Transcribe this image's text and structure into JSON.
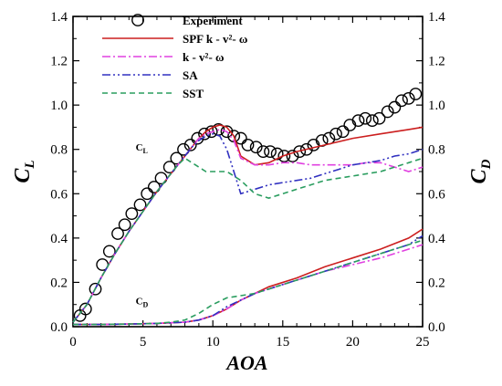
{
  "chart_data": {
    "type": "line",
    "title": "",
    "xlabel": "AOA",
    "ylabel_left": {
      "main": "C",
      "sub": "L"
    },
    "ylabel_right": {
      "main": "C",
      "sub": "D"
    },
    "xlim": [
      0,
      25
    ],
    "ylim": [
      0,
      1.4
    ],
    "xticks": [
      0,
      5,
      10,
      15,
      20,
      25
    ],
    "yticks": [
      0,
      0.2,
      0.4,
      0.6,
      0.8,
      1.0,
      1.2,
      1.4
    ],
    "ytick_labels": [
      "0.0",
      "0.2",
      "0.4",
      "0.6",
      "0.8",
      "1.0",
      "1.2",
      "1.4"
    ],
    "grid": false,
    "legend_position": "top-left",
    "curve_labels": [
      {
        "main": "C",
        "sub": "L",
        "x": 5,
        "y": 0.795
      },
      {
        "main": "C",
        "sub": "D",
        "x": 5,
        "y": 0.1
      }
    ],
    "series": [
      {
        "name": "Experiment",
        "style": "markers",
        "color": "#000000",
        "coefficient": "CL",
        "x": [
          0.5,
          0.9,
          1.6,
          2.1,
          2.6,
          3.2,
          3.7,
          4.2,
          4.8,
          5.3,
          5.8,
          6.3,
          6.9,
          7.4,
          7.9,
          8.4,
          8.9,
          9.4,
          9.9,
          10.4,
          11.0,
          11.5,
          12.0,
          12.5,
          13.1,
          13.6,
          14.1,
          14.6,
          15.1,
          15.7,
          16.2,
          16.7,
          17.2,
          17.8,
          18.3,
          18.8,
          19.3,
          19.8,
          20.4,
          20.9,
          21.4,
          21.9,
          22.5,
          23.0,
          23.5,
          24.0,
          24.5
        ],
        "y": [
          0.05,
          0.08,
          0.17,
          0.28,
          0.34,
          0.42,
          0.46,
          0.51,
          0.55,
          0.6,
          0.63,
          0.67,
          0.72,
          0.76,
          0.8,
          0.82,
          0.85,
          0.87,
          0.88,
          0.89,
          0.88,
          0.86,
          0.85,
          0.82,
          0.81,
          0.79,
          0.79,
          0.78,
          0.77,
          0.77,
          0.79,
          0.8,
          0.82,
          0.84,
          0.85,
          0.87,
          0.88,
          0.91,
          0.93,
          0.94,
          0.93,
          0.94,
          0.97,
          0.99,
          1.02,
          1.03,
          1.05
        ]
      },
      {
        "name": "SPF k - v²- ω",
        "style": "solid",
        "color": "#cc1f1f",
        "coefficient": "CL",
        "x": [
          0,
          1,
          2,
          3,
          4,
          5,
          6,
          7,
          8,
          8.5,
          9,
          9.5,
          10,
          10.5,
          11,
          11.5,
          12,
          13,
          14,
          15,
          16,
          18,
          20,
          22,
          24,
          25
        ],
        "y": [
          0.02,
          0.1,
          0.22,
          0.33,
          0.43,
          0.52,
          0.61,
          0.69,
          0.77,
          0.81,
          0.85,
          0.88,
          0.9,
          0.91,
          0.9,
          0.86,
          0.77,
          0.73,
          0.74,
          0.77,
          0.79,
          0.82,
          0.85,
          0.87,
          0.89,
          0.9
        ]
      },
      {
        "name": "k - v²- ω",
        "style": "dashdot",
        "color": "#e040e0",
        "coefficient": "CL",
        "x": [
          0,
          1,
          2,
          3,
          4,
          5,
          6,
          7,
          8,
          8.5,
          9,
          9.5,
          10,
          10.5,
          11,
          11.5,
          12,
          13,
          14,
          15,
          16,
          17,
          18,
          20,
          21,
          22,
          23,
          24,
          25
        ],
        "y": [
          0.02,
          0.1,
          0.22,
          0.33,
          0.43,
          0.52,
          0.61,
          0.69,
          0.77,
          0.81,
          0.85,
          0.87,
          0.88,
          0.89,
          0.88,
          0.84,
          0.76,
          0.73,
          0.73,
          0.74,
          0.74,
          0.73,
          0.73,
          0.73,
          0.74,
          0.74,
          0.72,
          0.7,
          0.72
        ]
      },
      {
        "name": "SA",
        "style": "dashdotdot",
        "color": "#3030c0",
        "coefficient": "CL",
        "x": [
          0,
          1,
          2,
          3,
          4,
          5,
          6,
          7,
          8,
          8.5,
          9,
          9.5,
          10,
          10.5,
          11,
          11.5,
          12,
          13,
          14,
          15,
          16,
          17,
          18,
          19,
          20,
          21,
          22,
          23,
          24,
          25
        ],
        "y": [
          0.02,
          0.1,
          0.22,
          0.33,
          0.43,
          0.52,
          0.61,
          0.69,
          0.77,
          0.81,
          0.84,
          0.86,
          0.87,
          0.86,
          0.8,
          0.7,
          0.6,
          0.62,
          0.64,
          0.65,
          0.66,
          0.67,
          0.69,
          0.71,
          0.73,
          0.74,
          0.75,
          0.77,
          0.78,
          0.8
        ]
      },
      {
        "name": "SST",
        "style": "dashed",
        "color": "#2a9d5f",
        "coefficient": "CL",
        "x": [
          0,
          1,
          2,
          3,
          4,
          5,
          6,
          7,
          7.5,
          8,
          8.5,
          9,
          9.5,
          10,
          11,
          12,
          13,
          14,
          15,
          16,
          17,
          18,
          19,
          20,
          21,
          22,
          23,
          24,
          25
        ],
        "y": [
          0.02,
          0.1,
          0.22,
          0.33,
          0.43,
          0.52,
          0.61,
          0.69,
          0.73,
          0.76,
          0.74,
          0.72,
          0.7,
          0.7,
          0.7,
          0.66,
          0.6,
          0.58,
          0.6,
          0.62,
          0.64,
          0.66,
          0.67,
          0.68,
          0.69,
          0.7,
          0.72,
          0.74,
          0.76
        ]
      },
      {
        "name": "SPF k - v²- ω",
        "style": "solid",
        "color": "#cc1f1f",
        "coefficient": "CD",
        "x": [
          0,
          2,
          4,
          6,
          8,
          9,
          10,
          11,
          12,
          13,
          14,
          16,
          18,
          20,
          22,
          24,
          25
        ],
        "y": [
          0.01,
          0.01,
          0.012,
          0.015,
          0.02,
          0.03,
          0.05,
          0.08,
          0.12,
          0.15,
          0.18,
          0.22,
          0.27,
          0.31,
          0.35,
          0.4,
          0.44
        ]
      },
      {
        "name": "k - v²- ω",
        "style": "dashdot",
        "color": "#e040e0",
        "coefficient": "CD",
        "x": [
          0,
          2,
          4,
          6,
          8,
          9,
          10,
          11,
          12,
          13,
          14,
          16,
          18,
          20,
          22,
          24,
          25
        ],
        "y": [
          0.01,
          0.01,
          0.012,
          0.015,
          0.02,
          0.03,
          0.05,
          0.08,
          0.12,
          0.15,
          0.17,
          0.21,
          0.25,
          0.28,
          0.31,
          0.35,
          0.37
        ]
      },
      {
        "name": "SA",
        "style": "dashdotdot",
        "color": "#3030c0",
        "coefficient": "CD",
        "x": [
          0,
          2,
          4,
          6,
          8,
          9,
          10,
          11,
          12,
          13,
          14,
          16,
          18,
          20,
          22,
          24,
          25
        ],
        "y": [
          0.01,
          0.01,
          0.012,
          0.015,
          0.02,
          0.03,
          0.05,
          0.09,
          0.12,
          0.15,
          0.17,
          0.21,
          0.25,
          0.29,
          0.33,
          0.37,
          0.41
        ]
      },
      {
        "name": "SST",
        "style": "dashed",
        "color": "#2a9d5f",
        "coefficient": "CD",
        "x": [
          0,
          2,
          4,
          6,
          7,
          8,
          9,
          10,
          11,
          12,
          13,
          14,
          16,
          18,
          20,
          22,
          24,
          25
        ],
        "y": [
          0.01,
          0.01,
          0.012,
          0.015,
          0.02,
          0.03,
          0.06,
          0.1,
          0.13,
          0.14,
          0.15,
          0.17,
          0.21,
          0.25,
          0.29,
          0.33,
          0.37,
          0.39
        ]
      }
    ]
  }
}
